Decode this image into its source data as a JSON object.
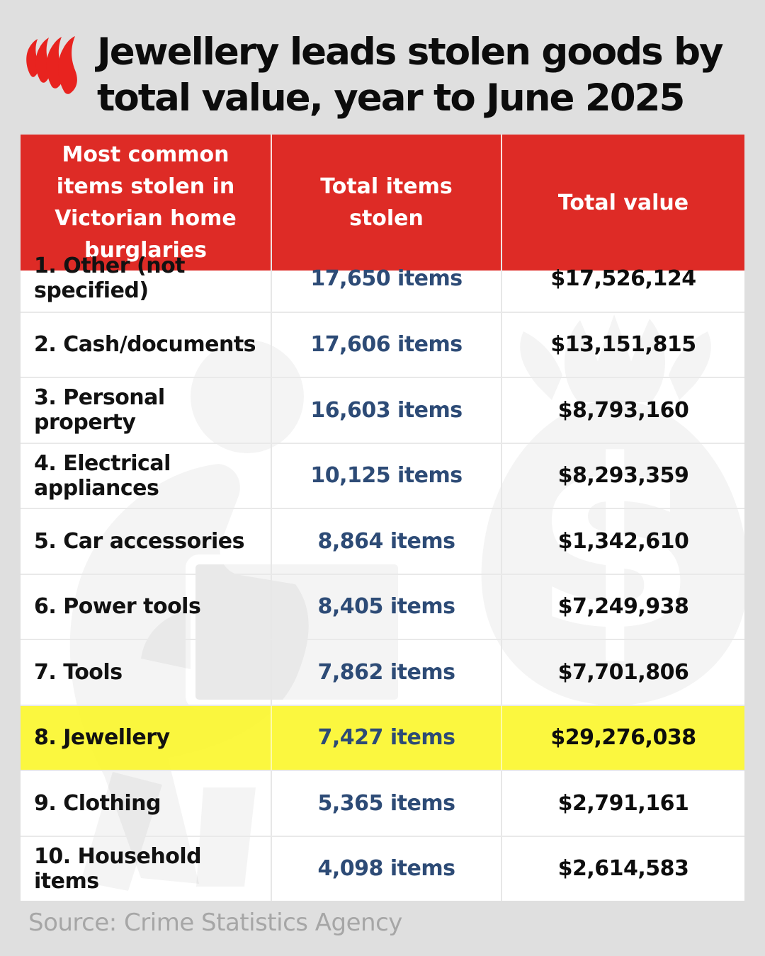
{
  "header": {
    "title_line1": "Jewellery leads stolen goods by",
    "title_line2": "total value, year to June 2025",
    "logo": "sbs-mercator-logo"
  },
  "table": {
    "headers": [
      "Most common items stolen in Victorian home burglaries",
      "Total items stolen",
      "Total value"
    ],
    "rows": [
      {
        "item": "1. Other (not specified)",
        "count": "17,650 items",
        "value": "$17,526,124",
        "highlight": false
      },
      {
        "item": "2. Cash/documents",
        "count": "17,606 items",
        "value": "$13,151,815",
        "highlight": false
      },
      {
        "item": "3. Personal property",
        "count": "16,603 items",
        "value": "$8,793,160",
        "highlight": false
      },
      {
        "item": "4. Electrical appliances",
        "count": "10,125 items",
        "value": "$8,293,359",
        "highlight": false
      },
      {
        "item": "5. Car accessories",
        "count": "8,864 items",
        "value": "$1,342,610",
        "highlight": false
      },
      {
        "item": "6. Power tools",
        "count": "8,405 items",
        "value": "$7,249,938",
        "highlight": false
      },
      {
        "item": "7. Tools",
        "count": "7,862 items",
        "value": "$7,701,806",
        "highlight": false
      },
      {
        "item": "8. Jewellery",
        "count": "7,427 items",
        "value": "$29,276,038",
        "highlight": true
      },
      {
        "item": "9. Clothing",
        "count": "5,365 items",
        "value": "$2,791,161",
        "highlight": false
      },
      {
        "item": "10. Household items",
        "count": "4,098 items",
        "value": "$2,614,583",
        "highlight": false
      }
    ]
  },
  "source": "Source: Crime Statistics Agency",
  "icons": {
    "logo": "sbs-mercator-logo",
    "watermark_left": "burglar-carrying-box-icon",
    "watermark_right": "money-bag-dollar-icon"
  },
  "colors": {
    "background": "#dfdfdf",
    "header_red": "#de2b26",
    "highlight_yellow": "#faf624",
    "count_navy": "#2d4b76",
    "row_white": "#ffffff",
    "divider": "#e9e9e9",
    "source_gray": "#a6a6a6",
    "title_black": "#0c0c0c"
  },
  "chart_data": {
    "type": "table",
    "title": "Jewellery leads stolen goods by total value, year to June 2025",
    "columns": [
      "Most common items stolen in Victorian home burglaries",
      "Total items stolen",
      "Total value ($)"
    ],
    "rows": [
      [
        "Other (not specified)",
        17650,
        17526124
      ],
      [
        "Cash/documents",
        17606,
        13151815
      ],
      [
        "Personal property",
        16603,
        8793160
      ],
      [
        "Electrical appliances",
        10125,
        8293359
      ],
      [
        "Car accessories",
        8864,
        1342610
      ],
      [
        "Power tools",
        8405,
        7249938
      ],
      [
        "Tools",
        7862,
        7701806
      ],
      [
        "Jewellery",
        7427,
        29276038
      ],
      [
        "Clothing",
        5365,
        2791161
      ],
      [
        "Household items",
        4098,
        2614583
      ]
    ],
    "highlighted_row": "Jewellery",
    "source": "Crime Statistics Agency"
  }
}
